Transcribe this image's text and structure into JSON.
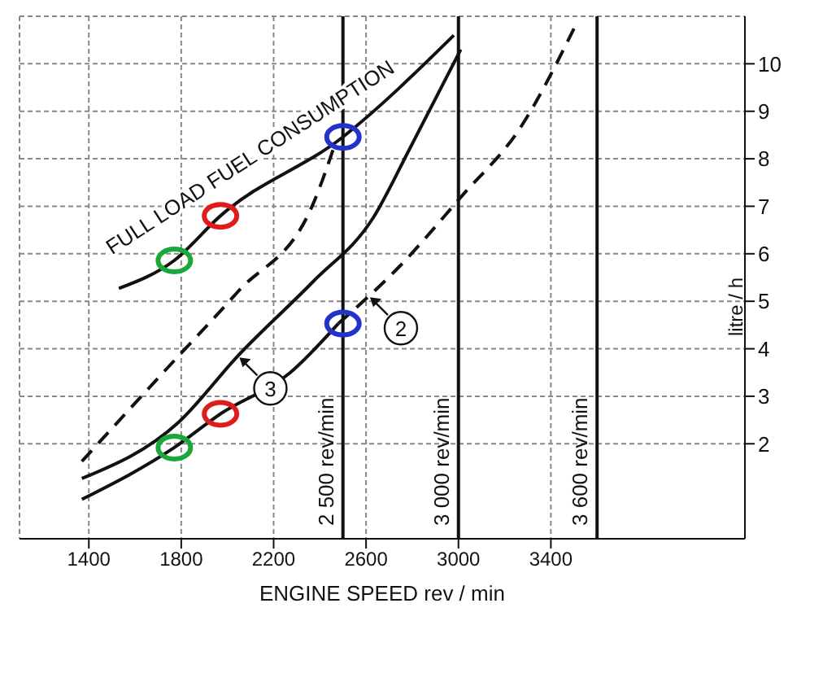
{
  "chart_data": {
    "type": "line",
    "xlabel": "ENGINE SPEED rev / min",
    "ylabel": "litre / h",
    "xlim": [
      1100,
      4240
    ],
    "xticks": [
      1400,
      1800,
      2200,
      2600,
      3000,
      3400
    ],
    "ylim": [
      0,
      11
    ],
    "yticks": [
      2,
      3,
      4,
      5,
      6,
      7,
      8,
      9,
      10
    ],
    "grid": true,
    "series": [
      {
        "name": "FULL LOAD FUEL CONSUMPTION",
        "color": "#111111",
        "line_style": "solid",
        "x": [
          1530,
          1770,
          1970,
          2500,
          2980
        ],
        "values": [
          5.27,
          5.86,
          6.8,
          8.46,
          10.6
        ]
      },
      {
        "color": "#111111",
        "line_style": "dashed",
        "x": [
          1370,
          1720,
          2045,
          2370,
          2470
        ],
        "values": [
          1.63,
          3.49,
          5.2,
          7.04,
          8.37
        ]
      },
      {
        "color": "#111111",
        "line_style": "solid",
        "x": [
          1370,
          1790,
          2045,
          2370,
          2630,
          2790,
          3010
        ],
        "values": [
          1.27,
          2.46,
          3.85,
          5.41,
          6.75,
          8.22,
          10.3
        ]
      },
      {
        "color": "#111111",
        "line_style": "solid",
        "x": [
          1370,
          1770,
          1970,
          2270,
          2480
        ],
        "values": [
          0.83,
          1.92,
          2.63,
          3.49,
          4.53
        ]
      },
      {
        "color": "#111111",
        "line_style": "dashed",
        "x": [
          2480,
          2740,
          3010,
          3270,
          3500
        ],
        "values": [
          4.53,
          5.71,
          7.19,
          8.67,
          10.74
        ]
      },
      {
        "type": "scatter",
        "color": "#1aa83a",
        "x": [
          1770,
          1770
        ],
        "values": [
          5.86,
          1.92
        ]
      },
      {
        "type": "scatter",
        "color": "#e01b1b",
        "x": [
          1970,
          1970
        ],
        "values": [
          6.8,
          2.63
        ]
      },
      {
        "type": "scatter",
        "color": "#2233cc",
        "x": [
          2500,
          2500
        ],
        "values": [
          8.46,
          4.53
        ]
      }
    ],
    "ref_lines": [
      {
        "axis": "x",
        "value": 2500,
        "label": "2 500 rev/min"
      },
      {
        "axis": "x",
        "value": 3000,
        "label": "3 000 rev/min"
      },
      {
        "axis": "x",
        "value": 3600,
        "label": "3 600 rev/min"
      }
    ],
    "annotations": [
      {
        "text": "2",
        "x": 2610,
        "y": 5.12
      },
      {
        "text": "3",
        "x": 2045,
        "y": 3.85
      }
    ]
  }
}
